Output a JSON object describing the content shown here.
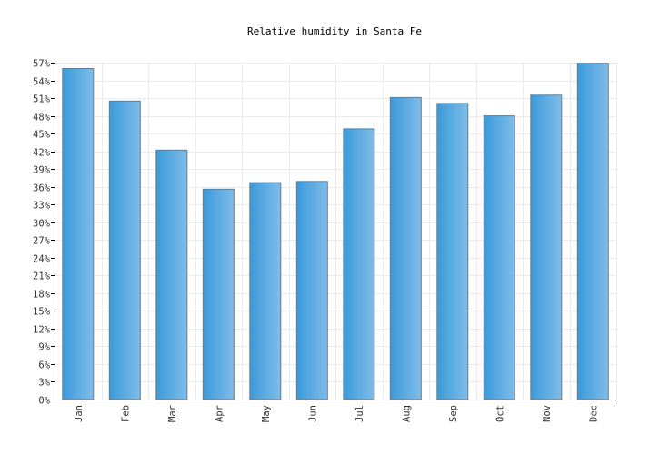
{
  "chart_data": {
    "type": "bar",
    "title": "Relative humidity in Santa Fe",
    "xlabel": "",
    "ylabel": "",
    "categories": [
      "Jan",
      "Feb",
      "Mar",
      "Apr",
      "May",
      "Jun",
      "Jul",
      "Aug",
      "Sep",
      "Oct",
      "Nov",
      "Dec"
    ],
    "values": [
      56,
      50.5,
      42.2,
      35.6,
      36.7,
      36.9,
      45.8,
      51.1,
      50.1,
      48,
      51.5,
      56.9
    ],
    "ylim": [
      0,
      57
    ],
    "ytick_step": 3,
    "ytick_suffix": "%",
    "ytick_labels": [
      "0%",
      "3%",
      "6%",
      "9%",
      "12%",
      "15%",
      "18%",
      "21%",
      "24%",
      "27%",
      "30%",
      "33%",
      "36%",
      "39%",
      "42%",
      "45%",
      "48%",
      "51%",
      "54%",
      "57%"
    ],
    "grid": true,
    "colors": {
      "bar_dark": "#3a9ad9",
      "bar_light": "#7fbcea",
      "grid": "#ebebeb",
      "axis": "#000000"
    }
  }
}
